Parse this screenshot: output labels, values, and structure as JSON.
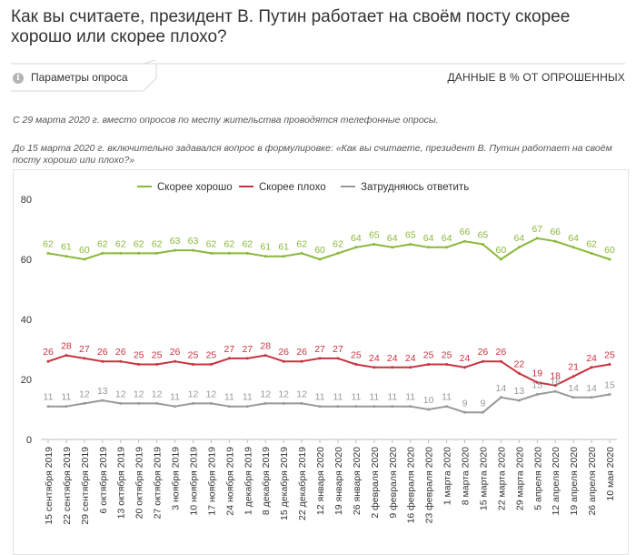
{
  "page": {
    "title": "Как вы считаете, президент В. Путин работает на своём посту скорее хорошо или скорее плохо?",
    "params_label": "Параметры опроса",
    "info_icon": "info-icon",
    "data_unit": "ДАННЫЕ В % ОТ ОПРОШЕННЫХ",
    "note1": "С 29 марта 2020 г. вместо опросов по месту жительства проводятся телефонные опросы.",
    "note2": "До 15 марта 2020 г. включительно задавался вопрос в формулировке: «Как вы считаете, президент В. Путин работает на своём посту хорошо или плохо?»"
  },
  "chart_data": {
    "type": "line",
    "ylim": [
      0,
      80
    ],
    "yticks": [
      0,
      20,
      40,
      60,
      80
    ],
    "grid": false,
    "legend_position": "top-center",
    "categories": [
      "15 сентября 2019",
      "22 сентября 2019",
      "29 сентября 2019",
      "6 октября 2019",
      "13 октября 2019",
      "20 октября 2019",
      "27 октября 2019",
      "3 ноября 2019",
      "10 ноября 2019",
      "17 ноября 2019",
      "24 ноября 2019",
      "1 декабря 2019",
      "8 декабря 2019",
      "15 декабря 2019",
      "22 декабря 2019",
      "12 января 2020",
      "19 января 2020",
      "26 января 2020",
      "2 февраля 2020",
      "9 февраля 2020",
      "16 февраля 2020",
      "23 февраля 2020",
      "1 марта 2020",
      "8 марта 2020",
      "15 марта 2020",
      "22 марта 2020",
      "29 марта 2020",
      "5 апреля 2020",
      "12 апреля 2020",
      "19 апреля 2020",
      "26 апреля 2020",
      "10 мая 2020"
    ],
    "series": [
      {
        "name": "Скорее хорошо",
        "color": "#8ab83a",
        "values": [
          62,
          61,
          60,
          62,
          62,
          62,
          62,
          63,
          63,
          62,
          62,
          62,
          61,
          61,
          62,
          60,
          62,
          64,
          65,
          64,
          65,
          64,
          64,
          66,
          65,
          60,
          64,
          67,
          66,
          64,
          62,
          60
        ]
      },
      {
        "name": "Скорее плохо",
        "color": "#c8333f",
        "values": [
          26,
          28,
          27,
          26,
          26,
          25,
          25,
          26,
          25,
          25,
          27,
          27,
          28,
          26,
          26,
          27,
          27,
          25,
          24,
          24,
          24,
          25,
          25,
          24,
          26,
          26,
          22,
          19,
          18,
          21,
          24,
          25
        ]
      },
      {
        "name": "Затрудняюсь ответить",
        "color": "#999999",
        "values": [
          11,
          11,
          12,
          13,
          12,
          12,
          12,
          11,
          12,
          12,
          11,
          11,
          12,
          12,
          12,
          11,
          11,
          11,
          11,
          11,
          11,
          10,
          11,
          9,
          9,
          14,
          13,
          15,
          16,
          14,
          14,
          15
        ]
      }
    ]
  }
}
